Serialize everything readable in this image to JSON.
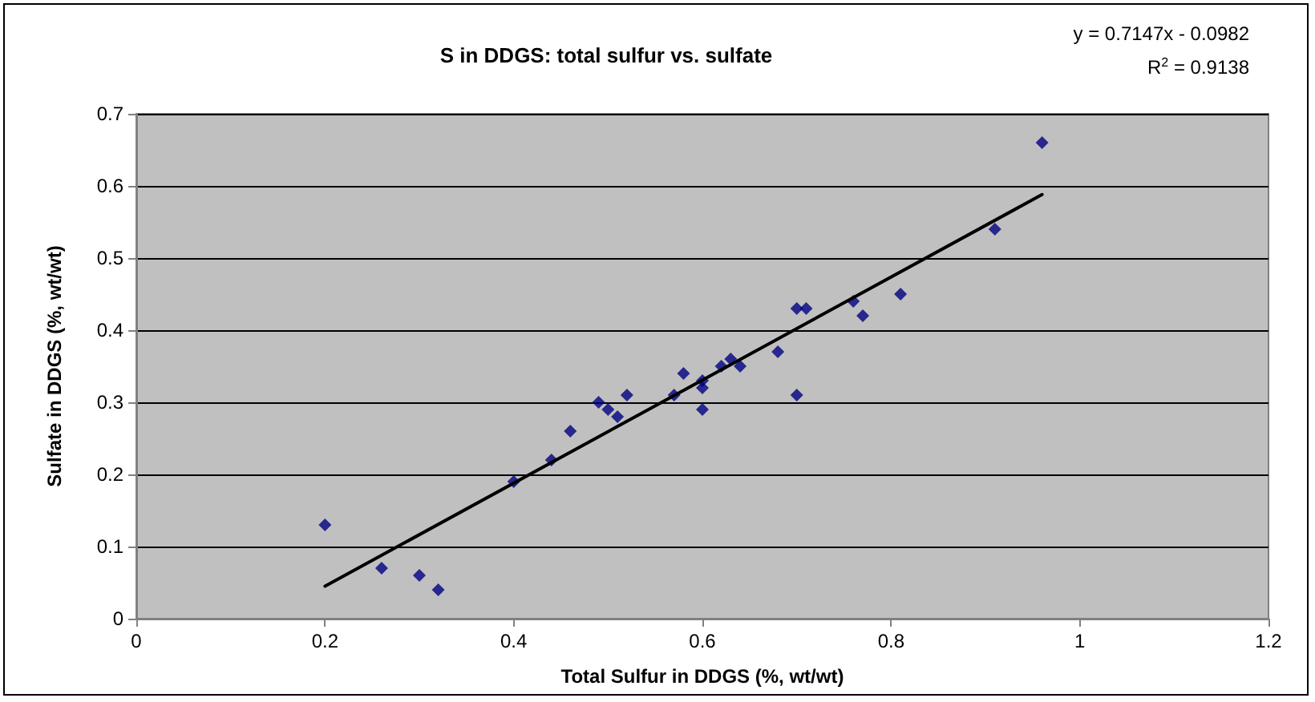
{
  "chart_data": {
    "type": "scatter",
    "title": "S in DDGS: total sulfur vs. sulfate",
    "xlabel": "Total Sulfur in DDGS (%, wt/wt)",
    "ylabel": "Sulfate in DDGS (%, wt/wt)",
    "annotations": [
      "y = 0.7147x - 0.0982",
      "R$^{2}$ = 0.9138"
    ],
    "xlim": [
      0,
      1.2
    ],
    "xticks": [
      0,
      0.2,
      0.4,
      0.6,
      0.8,
      1,
      1.2
    ],
    "ylim": [
      0,
      0.7
    ],
    "yticks": [
      0,
      0.1,
      0.2,
      0.3,
      0.4,
      0.5,
      0.6,
      0.7
    ],
    "grid": "y",
    "series": [
      {
        "color": "#000080",
        "marker": "diamond",
        "x": [
          0.2,
          0.26,
          0.3,
          0.32,
          0.4,
          0.44,
          0.46,
          0.49,
          0.5,
          0.51,
          0.52,
          0.57,
          0.58,
          0.6,
          0.6,
          0.6,
          0.62,
          0.63,
          0.64,
          0.68,
          0.7,
          0.71,
          0.7,
          0.76,
          0.77,
          0.81,
          0.91,
          0.96
        ],
        "values": [
          0.13,
          0.07,
          0.06,
          0.04,
          0.19,
          0.22,
          0.26,
          0.3,
          0.29,
          0.28,
          0.31,
          0.31,
          0.34,
          0.33,
          0.32,
          0.29,
          0.35,
          0.36,
          0.35,
          0.37,
          0.43,
          0.43,
          0.31,
          0.44,
          0.42,
          0.45,
          0.54,
          0.66
        ]
      },
      {
        "type": "line",
        "color": "#000000",
        "marker": "none",
        "line_style": "solid",
        "x": [
          0.2,
          0.96
        ],
        "values": [
          0.045,
          0.588
        ]
      }
    ]
  }
}
